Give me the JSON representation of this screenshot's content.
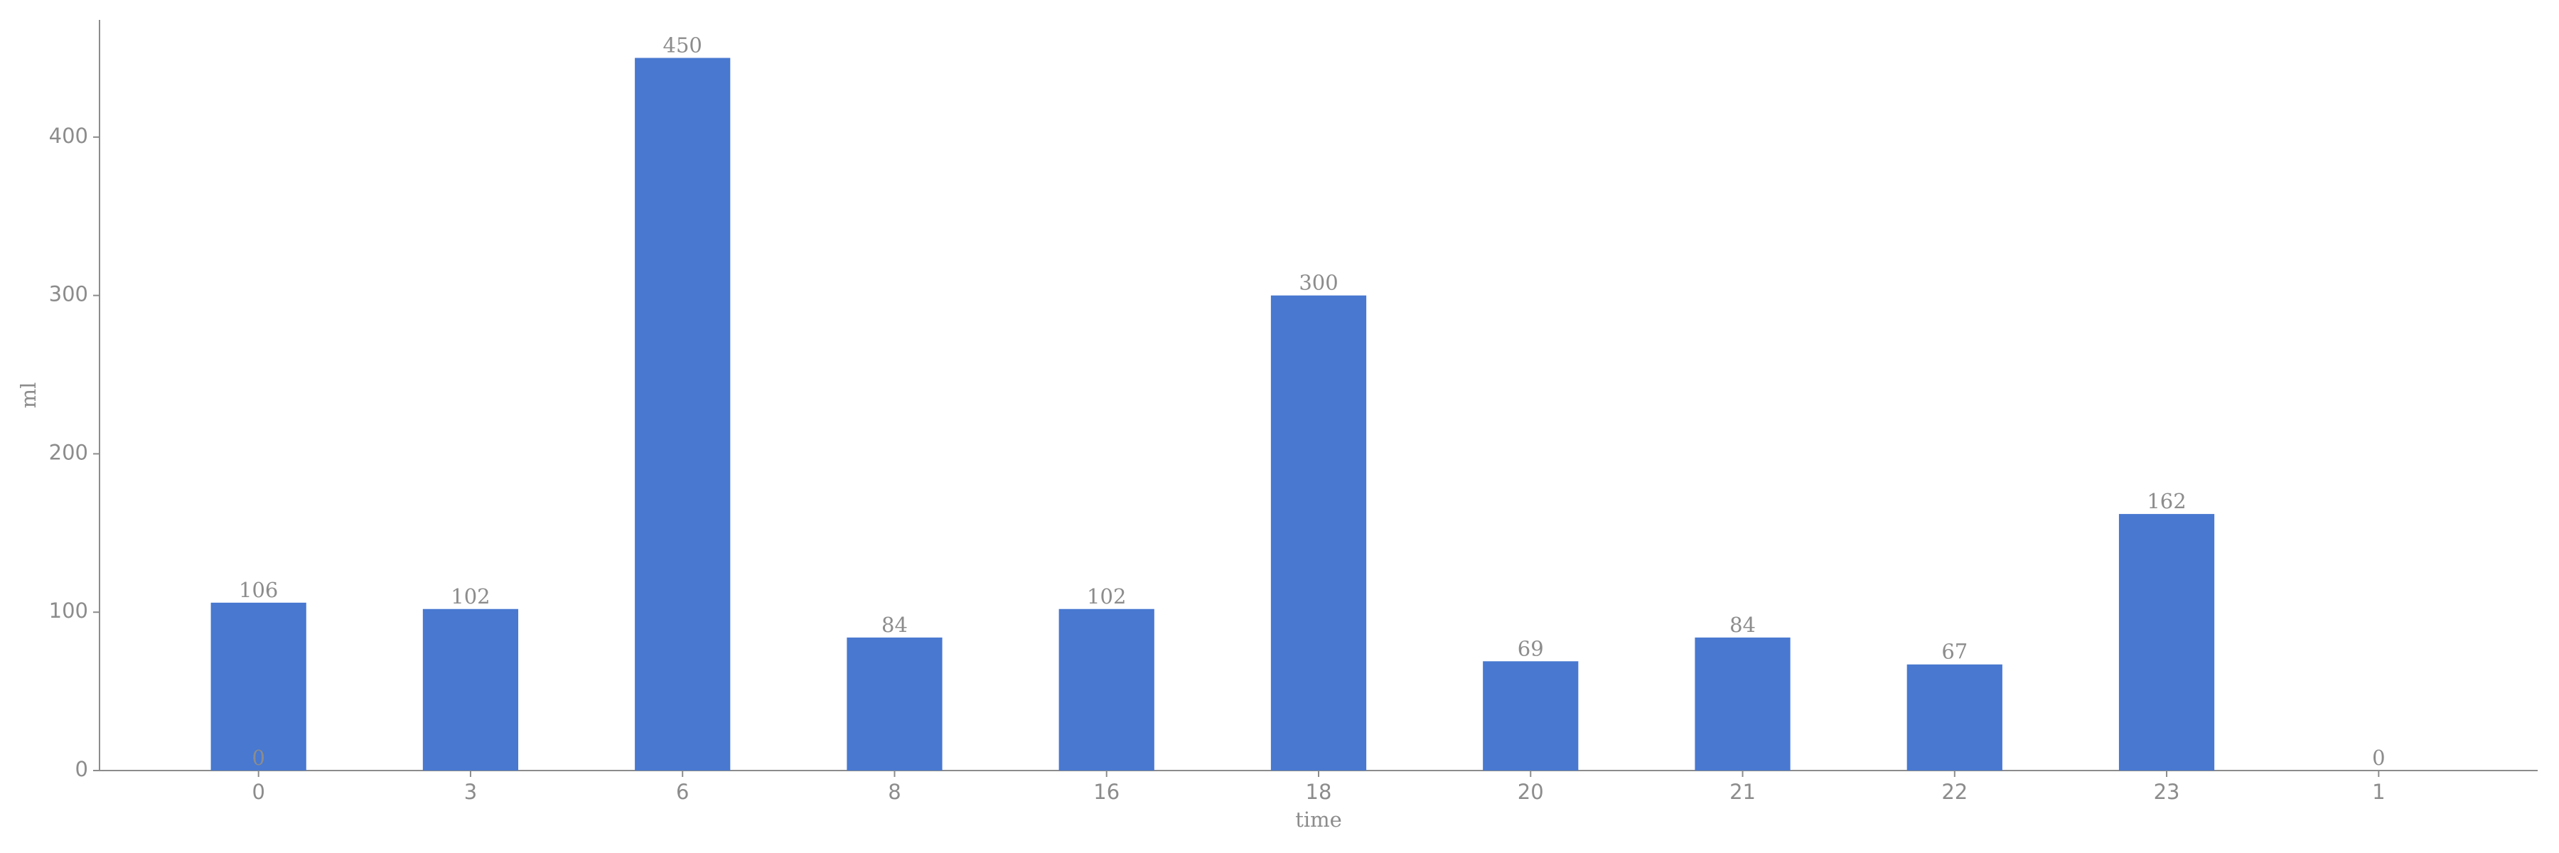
{
  "chart_data": {
    "type": "bar",
    "x_label": "time",
    "y_label": "ml",
    "categories": [
      "0",
      "3",
      "6",
      "8",
      "16",
      "18",
      "20",
      "21",
      "22",
      "23",
      "1"
    ],
    "values": [
      106,
      102,
      450,
      84,
      102,
      300,
      69,
      84,
      67,
      162,
      0
    ],
    "color": "#4878d0",
    "ylim": [
      0,
      474
    ],
    "yticks": [
      0,
      100,
      200,
      300,
      400
    ],
    "annotations": [
      {
        "text": "0",
        "x": "0",
        "y": 0
      }
    ]
  }
}
